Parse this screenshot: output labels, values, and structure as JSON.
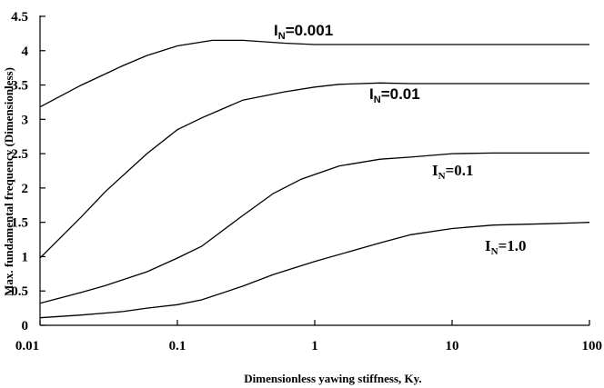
{
  "chart_data": {
    "type": "line",
    "xlabel": "Dimensionless yawing stiffness, Ky.",
    "ylabel": "Max. fundamental frequency   (Dimensionless)",
    "x_scale": "log",
    "xlim": [
      0.01,
      100
    ],
    "ylim": [
      0,
      4.5
    ],
    "x_ticks": [
      0.01,
      0.1,
      1,
      10,
      100
    ],
    "x_tick_labels": [
      "0.01",
      "0.1",
      "1",
      "10",
      "100"
    ],
    "y_ticks": [
      0,
      0.5,
      1,
      1.5,
      2,
      2.5,
      3,
      3.5,
      4,
      4.5
    ],
    "y_tick_labels": [
      "0",
      "0.5",
      "1",
      "1.5",
      "2",
      "2.5",
      "3",
      "3.5",
      "4",
      "4.5"
    ],
    "grid": false,
    "series": [
      {
        "label_main": "I",
        "label_sub": "N",
        "label_rest": "=0.001",
        "label_style": "sans",
        "x": [
          0.01,
          0.02,
          0.04,
          0.06,
          0.1,
          0.18,
          0.3,
          0.6,
          1,
          2,
          5,
          10,
          30,
          100
        ],
        "y": [
          3.18,
          3.5,
          3.78,
          3.93,
          4.07,
          4.15,
          4.15,
          4.11,
          4.09,
          4.09,
          4.09,
          4.09,
          4.09,
          4.09
        ]
      },
      {
        "label_main": "I",
        "label_sub": "N",
        "label_rest": "=0.01",
        "label_style": "sans",
        "x": [
          0.01,
          0.02,
          0.03,
          0.06,
          0.1,
          0.15,
          0.3,
          0.6,
          1,
          1.5,
          3,
          5,
          10,
          30,
          100
        ],
        "y": [
          0.98,
          1.58,
          1.95,
          2.5,
          2.85,
          3.02,
          3.28,
          3.4,
          3.47,
          3.51,
          3.53,
          3.52,
          3.52,
          3.52,
          3.52
        ]
      },
      {
        "label_main": "I",
        "label_sub": "N",
        "label_rest": "=0.1",
        "label_style": "serif",
        "x": [
          0.01,
          0.02,
          0.03,
          0.06,
          0.1,
          0.15,
          0.3,
          0.5,
          0.8,
          1.5,
          3,
          5,
          10,
          20,
          50,
          100
        ],
        "y": [
          0.32,
          0.48,
          0.58,
          0.78,
          0.98,
          1.15,
          1.6,
          1.92,
          2.13,
          2.32,
          2.42,
          2.45,
          2.5,
          2.51,
          2.51,
          2.51
        ]
      },
      {
        "label_main": "I",
        "label_sub": "N",
        "label_rest": "=1.0",
        "label_style": "serif",
        "x": [
          0.01,
          0.02,
          0.04,
          0.06,
          0.1,
          0.15,
          0.3,
          0.5,
          1,
          3,
          5,
          10,
          20,
          50,
          100
        ],
        "y": [
          0.11,
          0.15,
          0.2,
          0.25,
          0.3,
          0.37,
          0.57,
          0.74,
          0.93,
          1.2,
          1.32,
          1.41,
          1.46,
          1.48,
          1.5
        ]
      }
    ]
  }
}
